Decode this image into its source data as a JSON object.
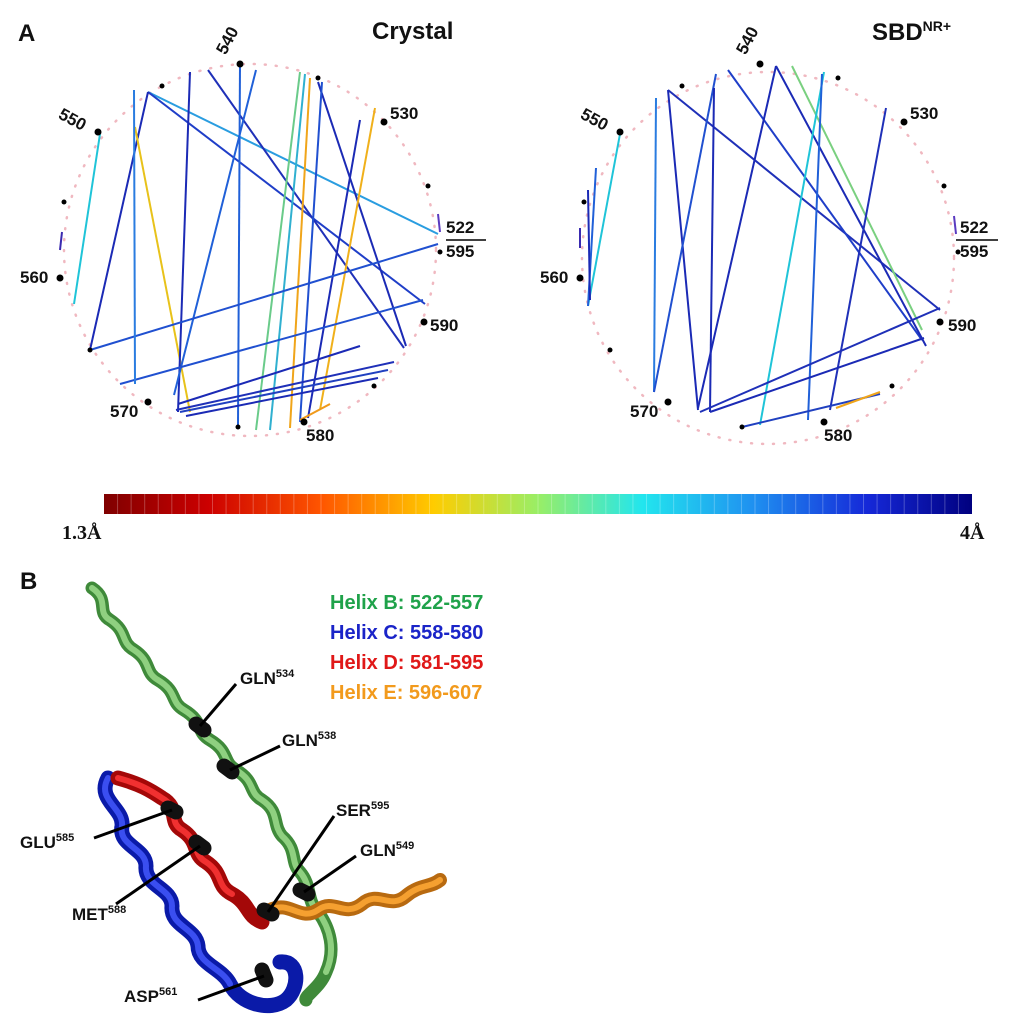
{
  "panel_a": {
    "letter": "A",
    "left_title": "Crystal",
    "right_title_main": "SBD",
    "right_title_sup": "NR+",
    "ticks": [
      "540",
      "530",
      "550",
      "522",
      "595",
      "560",
      "590",
      "570",
      "580"
    ]
  },
  "colorbar": {
    "min_label": "1.3Å",
    "max_label": "4Å",
    "min_value": 1.3,
    "max_value": 4.0
  },
  "panel_b": {
    "letter": "B",
    "legend": [
      {
        "text": "Helix B: 522-557",
        "color": "#1fa24a"
      },
      {
        "text": "Helix C: 558-580",
        "color": "#1a24c8"
      },
      {
        "text": "Helix D: 581-595",
        "color": "#e01818"
      },
      {
        "text": "Helix E: 596-607",
        "color": "#f29a1c"
      }
    ],
    "residues": [
      {
        "name": "GLN",
        "num": "534"
      },
      {
        "name": "GLN",
        "num": "538"
      },
      {
        "name": "SER",
        "num": "595"
      },
      {
        "name": "GLN",
        "num": "549"
      },
      {
        "name": "GLU",
        "num": "585"
      },
      {
        "name": "MET",
        "num": "588"
      },
      {
        "name": "ASP",
        "num": "561"
      }
    ]
  }
}
